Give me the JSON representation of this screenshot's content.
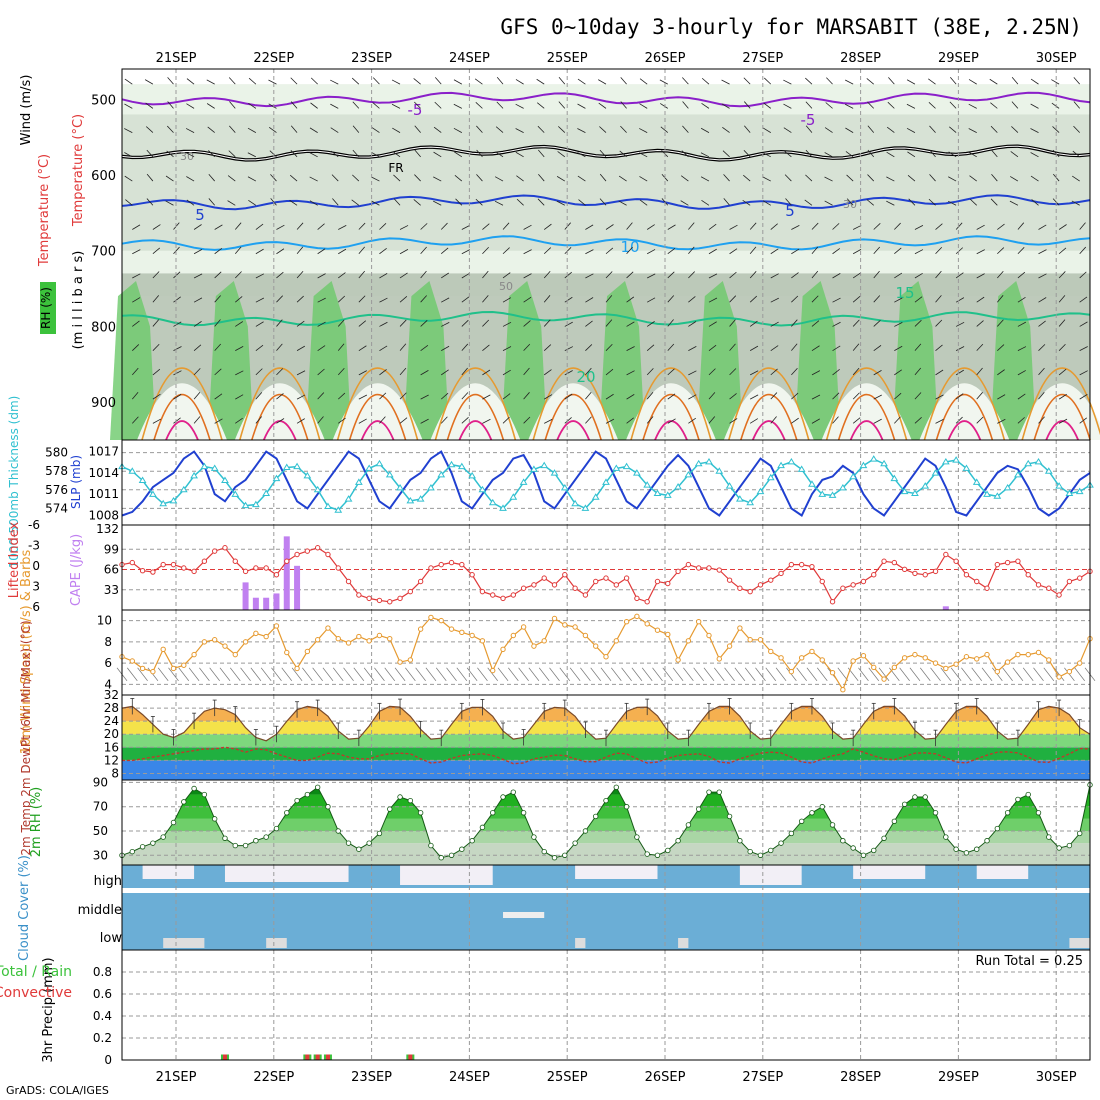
{
  "title": "GFS 0~10day 3-hourly for MARSABIT (38E, 2.25N)",
  "credit": "GrADS: COLA/IGES",
  "dates": [
    "21SEP",
    "22SEP",
    "23SEP",
    "24SEP",
    "25SEP",
    "26SEP",
    "27SEP",
    "28SEP",
    "29SEP",
    "30SEP"
  ],
  "colors": {
    "purple": "#8a1fc9",
    "navy": "#2040d0",
    "sky": "#1ea0f0",
    "teal": "#20c08a",
    "orange": "#e69a30",
    "darkorange": "#e07020",
    "magenta": "#e0208a",
    "red": "#e03a3a",
    "violet": "#c080f0",
    "cyan": "#30c0d0",
    "cloud": "#6baed6"
  },
  "chart_data": [
    {
      "type": "heatmap",
      "panel": "upper-air",
      "ylabels": [
        "Temperature (°C)",
        "Wind (m/s)",
        "RH (%)",
        "(m i l l i b a r s)"
      ],
      "yticks": [
        500,
        600,
        700,
        800,
        900
      ],
      "ylim": [
        1000,
        460
      ],
      "isotherm_labels": [
        "-5",
        "-5",
        "FR",
        "5",
        "5",
        "10",
        "15",
        "20"
      ],
      "rh_labels": [
        "30",
        "30",
        "50"
      ],
      "isotherms": [
        {
          "value": -5,
          "level_hpa": 500
        },
        {
          "value": 0,
          "level_hpa": 572
        },
        {
          "value": 5,
          "level_hpa": 635
        },
        {
          "value": 10,
          "level_hpa": 690
        },
        {
          "value": 15,
          "level_hpa": 790
        }
      ]
    },
    {
      "type": "line",
      "panel": "thickness-slp",
      "ylabel_left": "1000-500mb Thickness (dm)",
      "ylabel_right": "SLP (mb)",
      "yticks_left": [
        574,
        576,
        578,
        580
      ],
      "yticks_right": [
        1008,
        1011,
        1014,
        1017
      ],
      "series": [
        {
          "name": "SLP (mb)",
          "values": [
            1008,
            1008.5,
            1010,
            1012,
            1013,
            1014,
            1016,
            1017,
            1015,
            1011,
            1010,
            1012,
            1013,
            1015,
            1017,
            1016,
            1013,
            1010,
            1009,
            1011,
            1013,
            1015,
            1017,
            1016,
            1013,
            1010,
            1009,
            1011,
            1013,
            1014,
            1016,
            1017,
            1014,
            1010,
            1009,
            1011,
            1013,
            1014,
            1016,
            1016.5,
            1014,
            1010,
            1009,
            1011,
            1013,
            1015,
            1017,
            1016,
            1013,
            1010,
            1009,
            1011,
            1013,
            1015,
            1016.5,
            1015,
            1012,
            1009,
            1008,
            1010,
            1012,
            1014,
            1016,
            1015,
            1012,
            1009,
            1008,
            1011,
            1013,
            1013.5,
            1015,
            1014,
            1011,
            1009,
            1008,
            1010,
            1012,
            1014,
            1016,
            1015,
            1012,
            1008.5,
            1008,
            1010,
            1012,
            1014,
            1015,
            1014.5,
            1012,
            1009,
            1008,
            1009,
            1011,
            1013,
            1014
          ]
        },
        {
          "name": "1000-500mb Thickness (dm)",
          "values": [
            578.5,
            578,
            577,
            575.5,
            574.5,
            574.8,
            576,
            577.5,
            578.5,
            578.3,
            577,
            575.5,
            574.3,
            574.4,
            575.6,
            577.2,
            578.4,
            578.5,
            577.5,
            576,
            574.2,
            573.8,
            575,
            576.8,
            578.3,
            578.8,
            577.6,
            576.2,
            574.8,
            575,
            576.2,
            577.6,
            578.7,
            578.5,
            577.5,
            576,
            574.6,
            574,
            575.2,
            576.8,
            578.2,
            578.6,
            577.8,
            576.2,
            574.5,
            574,
            575.2,
            576.8,
            578.3,
            578.5,
            577.8,
            576.5,
            575.6,
            575.4,
            576.3,
            577.6,
            578.8,
            579,
            578,
            576.4,
            575,
            574.6,
            575.8,
            577.3,
            578.6,
            579,
            578.2,
            576.6,
            575.5,
            575.4,
            576.2,
            577.4,
            578.6,
            579.3,
            578.8,
            577.2,
            575.8,
            575.6,
            576.4,
            577.8,
            579,
            579.2,
            578.3,
            576.8,
            575.5,
            575.3,
            576.2,
            577.6,
            578.8,
            579,
            578,
            576.4,
            575.6,
            575.8,
            576.5
          ]
        }
      ]
    },
    {
      "type": "bar",
      "panel": "cape-li",
      "ylabel_left": "Lifted Index",
      "ylabel_right": "CAPE (J/kg)",
      "yticks_left": [
        "-6",
        "-3",
        "0",
        "3",
        "6"
      ],
      "yticks_right": [
        33,
        66,
        99,
        132
      ],
      "series": [
        {
          "name": "CAPE (J/kg)",
          "values": [
            0,
            0,
            0,
            0,
            0,
            0,
            0,
            0,
            0,
            0,
            0,
            0,
            45,
            20,
            20,
            27,
            120,
            72,
            0,
            0,
            0,
            0,
            0,
            0,
            0,
            0,
            0,
            0,
            0,
            0,
            0,
            0,
            0,
            0,
            0,
            0,
            0,
            0,
            0,
            0,
            0,
            0,
            0,
            0,
            0,
            0,
            0,
            0,
            0,
            0,
            0,
            0,
            0,
            0,
            0,
            0,
            0,
            0,
            0,
            0,
            0,
            0,
            0,
            0,
            0,
            0,
            0,
            0,
            0,
            0,
            0,
            0,
            0,
            0,
            0,
            0,
            0,
            0,
            0,
            0,
            0,
            0,
            0,
            0,
            0,
            0,
            0,
            0,
            0,
            0,
            0,
            0,
            0,
            0,
            0
          ]
        },
        {
          "name": "Lifted Index",
          "values": [
            -0.5,
            -0.8,
            0.4,
            0.6,
            -0.5,
            -0.5,
            0,
            0.5,
            -1,
            -2.5,
            -3,
            -1,
            0.5,
            0,
            0,
            1,
            -1,
            -2,
            -2.5,
            -3,
            -2,
            0,
            2,
            4,
            4.5,
            4.8,
            5,
            4.5,
            3.5,
            2,
            0,
            -0.5,
            -0.8,
            -0.5,
            1,
            3.5,
            4,
            4.5,
            4,
            3,
            2.5,
            1.5,
            2.5,
            1,
            3,
            4,
            2,
            1.5,
            2.5,
            1.5,
            4.5,
            5,
            2,
            2.3,
            0.5,
            -0.5,
            0,
            0,
            0.3,
            1.8,
            3,
            3.5,
            2.5,
            1.8,
            0.8,
            -0.5,
            -0.5,
            -0.2,
            2,
            5,
            3,
            2.5,
            2,
            1,
            -1,
            -0.8,
            0.2,
            0.8,
            1,
            0.5,
            -2,
            -1,
            1,
            2,
            3,
            -0.5,
            -0.8,
            -1,
            1,
            2.5,
            3,
            4,
            2,
            1.5,
            0.5
          ]
        }
      ]
    },
    {
      "type": "line",
      "panel": "wind10m",
      "ylabel": "10m Wind Speed (m/s) & Barbs",
      "yticks": [
        4,
        6,
        8,
        10
      ],
      "ylim": [
        3,
        11
      ],
      "series": [
        {
          "name": "10m Wind Speed",
          "values": [
            6.6,
            6.2,
            5.5,
            5.2,
            7.3,
            5.5,
            5.8,
            6.8,
            8,
            8.2,
            7.6,
            6.8,
            8,
            8.8,
            8.5,
            9.5,
            7,
            5.5,
            7.1,
            8.2,
            9.3,
            8.3,
            7.9,
            8.5,
            8.1,
            8.6,
            8.3,
            6.1,
            6.3,
            9.2,
            10.3,
            10,
            9.2,
            8.9,
            8.6,
            8.1,
            5.3,
            7.3,
            8.6,
            9.4,
            7.6,
            8.1,
            10.2,
            9.6,
            9.4,
            8.6,
            7.6,
            6.6,
            8.1,
            9.9,
            10.4,
            9.7,
            9.1,
            8.7,
            6.3,
            8.1,
            9.9,
            8.6,
            6.4,
            7.6,
            9.3,
            8.2,
            8.2,
            7.1,
            6.5,
            5.2,
            6.5,
            7.1,
            6.3,
            5.1,
            3.5,
            6.2,
            6.7,
            5.6,
            4.5,
            5.6,
            6.5,
            6.8,
            6.5,
            6,
            5.5,
            5.9,
            6.6,
            6.4,
            6.8,
            5.2,
            6.1,
            6.8,
            6.8,
            7,
            6.3,
            4.7,
            5.2,
            6,
            8.3
          ]
        }
      ]
    },
    {
      "type": "area",
      "panel": "temp2m",
      "ylabel": "2m Temp 2m DewPt (6hr Min/Max) (°C)",
      "yticks": [
        8,
        12,
        16,
        20,
        24,
        28,
        32
      ],
      "ylim": [
        6,
        32
      ],
      "series": [
        {
          "name": "2m Temp",
          "values": [
            28,
            28.5,
            26,
            23,
            20,
            19,
            20.5,
            24,
            27,
            28,
            27.5,
            26,
            22,
            19,
            18,
            20,
            24,
            27.5,
            28.5,
            28,
            25.5,
            21,
            18.5,
            18.8,
            22.5,
            27,
            28.5,
            28.3,
            25.5,
            21.5,
            18.5,
            18.8,
            23,
            27,
            28.2,
            28.2,
            25.5,
            21,
            18.5,
            19,
            23,
            27,
            28.2,
            28,
            25.5,
            21.3,
            18.5,
            18.8,
            23,
            27,
            28.2,
            28.3,
            25.6,
            21,
            18.5,
            18.8,
            23,
            27,
            28.5,
            28.5,
            25.5,
            21,
            18.5,
            18.8,
            23,
            27,
            28.5,
            28.5,
            25.5,
            21,
            18.5,
            18.8,
            23,
            27,
            28.5,
            28.5,
            25.6,
            21.2,
            18.5,
            18.8,
            23,
            27,
            28.5,
            28.5,
            25.5,
            21,
            18.5,
            18.8,
            23,
            27.5,
            28.5,
            28,
            26,
            22,
            20
          ]
        },
        {
          "name": "2m DewPt",
          "values": [
            12,
            12,
            12.5,
            13,
            13.5,
            14,
            14.5,
            15,
            15.5,
            15.5,
            16,
            15.5,
            14.5,
            15.5,
            15.2,
            14,
            13,
            12,
            12,
            13,
            14.2,
            14,
            13,
            12.5,
            12.5,
            13.5,
            14,
            14.2,
            14,
            12.5,
            11.2,
            11.5,
            12.6,
            13.5,
            13.8,
            14,
            13.5,
            12.3,
            11,
            11.2,
            12.5,
            13,
            13.6,
            13.5,
            12.5,
            11.6,
            11.6,
            13,
            14.2,
            14,
            12.5,
            11.2,
            11.5,
            12.6,
            13.5,
            13.8,
            14,
            13.2,
            11.5,
            11.2,
            12.5,
            13.4,
            14.2,
            14.5,
            14.3,
            13,
            11.5,
            11.2,
            12.5,
            13.4,
            14,
            15.5,
            14.5,
            13.4,
            12.5,
            12.2,
            13.2,
            14.2,
            14.3,
            14,
            12.8,
            11.5,
            11.2,
            12.5,
            13.6,
            14.5,
            14.6,
            14.3,
            13,
            11.5,
            11.4,
            12.6,
            14,
            15.6,
            15.5
          ]
        }
      ]
    },
    {
      "type": "area",
      "panel": "rh2m",
      "ylabel": "2m RH (%)",
      "yticks": [
        30,
        50,
        70,
        90
      ],
      "ylim": [
        22,
        92
      ],
      "series": [
        {
          "name": "2m RH",
          "values": [
            30,
            33,
            37,
            40,
            45,
            57,
            74,
            85,
            80,
            60,
            44,
            38,
            38,
            42,
            45,
            52,
            65,
            75,
            80,
            86,
            70,
            50,
            40,
            35,
            40,
            48,
            68,
            78,
            75,
            65,
            38,
            28,
            30,
            35,
            42,
            53,
            65,
            78,
            82,
            65,
            45,
            33,
            28,
            30,
            40,
            50,
            62,
            75,
            86,
            70,
            45,
            31,
            30,
            34,
            42,
            55,
            68,
            82,
            82,
            62,
            42,
            33,
            30,
            34,
            40,
            48,
            58,
            65,
            70,
            55,
            42,
            36,
            30,
            34,
            44,
            58,
            72,
            78,
            78,
            65,
            45,
            35,
            32,
            35,
            42,
            52,
            65,
            76,
            80,
            65,
            45,
            36,
            38,
            48,
            88
          ]
        }
      ]
    },
    {
      "type": "area",
      "panel": "cloud",
      "ylabel": "Cloud Cover (%)",
      "yticks": [
        "high",
        "middle",
        "low"
      ]
    },
    {
      "type": "bar",
      "panel": "precip",
      "ylabel_left": "Total / Rain",
      "ylabel_left2": "Convective",
      "ylabel": "3hr Precip (mm)",
      "yticks": [
        0,
        0.2,
        0.4,
        0.6,
        0.8
      ],
      "ylim": [
        0,
        1
      ],
      "annotation": "Run Total = 0.25",
      "bars": [
        {
          "x_index": 6,
          "value": 0.05
        },
        {
          "x_index": 14,
          "value": 0.05
        },
        {
          "x_index": 15,
          "value": 0.05
        },
        {
          "x_index": 16,
          "value": 0.05
        },
        {
          "x_index": 24,
          "value": 0.05
        }
      ]
    }
  ]
}
